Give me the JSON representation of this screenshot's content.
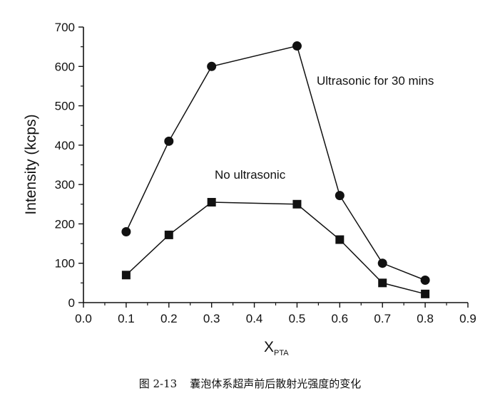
{
  "chart_data": {
    "type": "line",
    "xlabel": "X",
    "xlabel_sub": "PTA",
    "ylabel": "Intensity (kcps)",
    "xlim": [
      0.0,
      0.9
    ],
    "ylim": [
      0,
      700
    ],
    "xticks": [
      "0.0",
      "0.1",
      "0.2",
      "0.3",
      "0.4",
      "0.5",
      "0.6",
      "0.7",
      "0.8",
      "0.9"
    ],
    "yticks": [
      "0",
      "100",
      "200",
      "300",
      "400",
      "500",
      "600",
      "700"
    ],
    "grid": false,
    "series": [
      {
        "name": "Ultrasonic for 30 mins",
        "marker": "circle",
        "x": [
          0.1,
          0.2,
          0.3,
          0.5,
          0.6,
          0.7,
          0.8
        ],
        "y": [
          180,
          410,
          600,
          652,
          272,
          100,
          57
        ]
      },
      {
        "name": "No ultrasonic",
        "marker": "square",
        "x": [
          0.1,
          0.2,
          0.3,
          0.5,
          0.6,
          0.7,
          0.8
        ],
        "y": [
          70,
          172,
          255,
          250,
          160,
          50,
          22
        ]
      }
    ]
  },
  "caption": {
    "number": "图 2-13",
    "text": "囊泡体系超声前后散射光强度的变化"
  }
}
